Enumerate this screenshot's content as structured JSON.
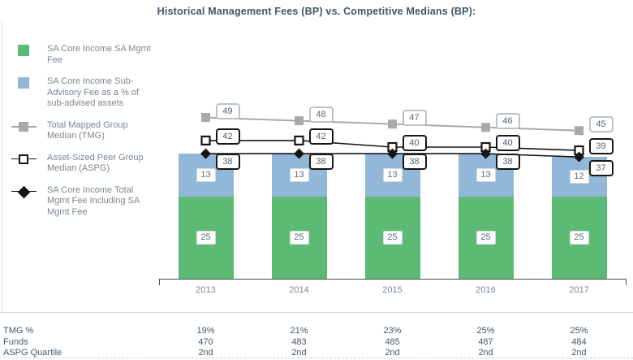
{
  "title": "Historical Management Fees (BP) vs. Competitive Medians (BP):",
  "legend": {
    "items": [
      {
        "label": "SA Core Income SA Mgmt Fee",
        "marker": "green-square"
      },
      {
        "label": "SA Core Income Sub-Advisory Fee as a % of sub-advised assets",
        "marker": "blue-square"
      },
      {
        "label": "Total Mapped Group Median (TMG)",
        "marker": "gray-square-line"
      },
      {
        "label": "Asset-Sized Peer Group Median (ASPG)",
        "marker": "white-square-line"
      },
      {
        "label": "SA Core Income Total Mgmt Fee Including SA Mgmt Fee",
        "marker": "black-diamond-line"
      }
    ]
  },
  "chart_data": {
    "type": "combo",
    "categories": [
      "2013",
      "2014",
      "2015",
      "2016",
      "2017"
    ],
    "stacked_bar_series": [
      {
        "name": "SA Core Income SA Mgmt Fee",
        "color": "#5bbb74",
        "values": [
          25,
          25,
          25,
          25,
          25
        ]
      },
      {
        "name": "SA Core Income Sub-Advisory Fee as a % of sub-advised assets",
        "color": "#92b8d9",
        "values": [
          13,
          13,
          13,
          13,
          12
        ]
      }
    ],
    "line_series": [
      {
        "name": "Total Mapped Group Median (TMG)",
        "marker": "gray-square",
        "color": "#a9a9a9",
        "values": [
          49,
          48,
          47,
          46,
          45
        ]
      },
      {
        "name": "Asset-Sized Peer Group Median (ASPG)",
        "marker": "white-square",
        "color": "#161616",
        "values": [
          42,
          42,
          40,
          40,
          39
        ]
      },
      {
        "name": "SA Core Income Total Mgmt Fee Including SA Mgmt Fee",
        "marker": "black-diamond",
        "color": "#161616",
        "values": [
          38,
          38,
          38,
          38,
          37
        ]
      }
    ],
    "ylim": [
      0,
      55
    ],
    "grid": false,
    "legend_position": "left",
    "data_labels": true
  },
  "table": {
    "rows": [
      {
        "label": "TMG %",
        "values": [
          "19%",
          "21%",
          "23%",
          "25%",
          "25%"
        ]
      },
      {
        "label": "Funds",
        "values": [
          "470",
          "483",
          "485",
          "487",
          "484"
        ]
      },
      {
        "label": "ASPG Quartile",
        "values": [
          "2nd",
          "2nd",
          "2nd",
          "2nd",
          "2nd"
        ]
      }
    ]
  },
  "colors": {
    "bar_green": "#5bbb74",
    "bar_blue": "#92b8d9",
    "tmg_line": "#a9a9a9",
    "black_line": "#161616",
    "title_text": "#3e5669",
    "table_text": "#42586a",
    "legend_text": "#7b868e",
    "callout_text": "#4c6375"
  }
}
